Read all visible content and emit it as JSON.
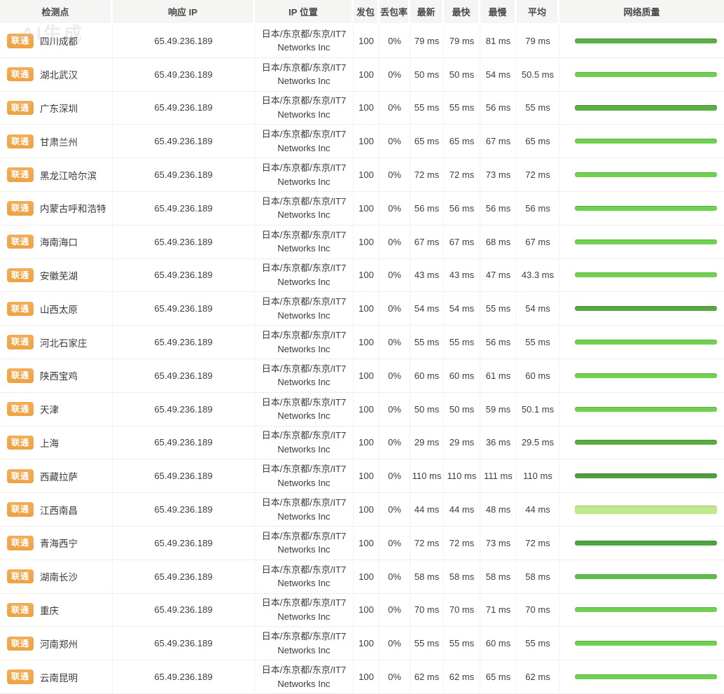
{
  "watermark": "AI生成",
  "columns": {
    "testpoint": "检测点",
    "response_ip": "响应 IP",
    "ip_location": "IP 位置",
    "packets": "发包",
    "loss": "丢包率",
    "latest": "最新",
    "fastest": "最快",
    "slowest": "最慢",
    "average": "平均",
    "quality": "网络质量"
  },
  "colors": {
    "carrier_badge": "#f0a64d",
    "bar_medium": "#6fd14f",
    "bar_medium_dark": "#58b044",
    "bar_dark": "#55a844",
    "bar_light": "#bfe98a",
    "header_bg": "#f5f5f4"
  },
  "table": {
    "rows": [
      {
        "carrier": "联通",
        "location": "四川成都",
        "ip": "65.49.236.189",
        "ip_location_line1": "日本/东京都/东京/IT7",
        "ip_location_line2": "Networks Inc",
        "packets": "100",
        "loss": "0%",
        "latest": "79 ms",
        "fastest": "79 ms",
        "slowest": "81 ms",
        "average": "79 ms",
        "bar": {
          "color": "#58b044",
          "height": 7,
          "textured": false
        }
      },
      {
        "carrier": "联通",
        "location": "湖北武汉",
        "ip": "65.49.236.189",
        "ip_location_line1": "日本/东京都/东京/IT7",
        "ip_location_line2": "Networks Inc",
        "packets": "100",
        "loss": "0%",
        "latest": "50 ms",
        "fastest": "50 ms",
        "slowest": "54 ms",
        "average": "50.5 ms",
        "bar": {
          "color": "#6fd14f",
          "height": 7,
          "textured": false
        }
      },
      {
        "carrier": "联通",
        "location": "广东深圳",
        "ip": "65.49.236.189",
        "ip_location_line1": "日本/东京都/东京/IT7",
        "ip_location_line2": "Networks Inc",
        "packets": "100",
        "loss": "0%",
        "latest": "55 ms",
        "fastest": "55 ms",
        "slowest": "56 ms",
        "average": "55 ms",
        "bar": {
          "color": "#58b044",
          "height": 8,
          "textured": true
        }
      },
      {
        "carrier": "联通",
        "location": "甘肃兰州",
        "ip": "65.49.236.189",
        "ip_location_line1": "日本/东京都/东京/IT7",
        "ip_location_line2": "Networks Inc",
        "packets": "100",
        "loss": "0%",
        "latest": "65 ms",
        "fastest": "65 ms",
        "slowest": "67 ms",
        "average": "65 ms",
        "bar": {
          "color": "#6fd14f",
          "height": 7,
          "textured": false
        }
      },
      {
        "carrier": "联通",
        "location": "黑龙江哈尔滨",
        "ip": "65.49.236.189",
        "ip_location_line1": "日本/东京都/东京/IT7",
        "ip_location_line2": "Networks Inc",
        "packets": "100",
        "loss": "0%",
        "latest": "72 ms",
        "fastest": "72 ms",
        "slowest": "73 ms",
        "average": "72 ms",
        "bar": {
          "color": "#6fd14f",
          "height": 7,
          "textured": false
        }
      },
      {
        "carrier": "联通",
        "location": "内蒙古呼和浩特",
        "ip": "65.49.236.189",
        "ip_location_line1": "日本/东京都/东京/IT7",
        "ip_location_line2": "Networks Inc",
        "packets": "100",
        "loss": "0%",
        "latest": "56 ms",
        "fastest": "56 ms",
        "slowest": "56 ms",
        "average": "56 ms",
        "bar": {
          "color": "#6fd14f",
          "height": 7,
          "textured": false
        }
      },
      {
        "carrier": "联通",
        "location": "海南海口",
        "ip": "65.49.236.189",
        "ip_location_line1": "日本/东京都/东京/IT7",
        "ip_location_line2": "Networks Inc",
        "packets": "100",
        "loss": "0%",
        "latest": "67 ms",
        "fastest": "67 ms",
        "slowest": "68 ms",
        "average": "67 ms",
        "bar": {
          "color": "#6fd14f",
          "height": 7,
          "textured": false
        }
      },
      {
        "carrier": "联通",
        "location": "安徽芜湖",
        "ip": "65.49.236.189",
        "ip_location_line1": "日本/东京都/东京/IT7",
        "ip_location_line2": "Networks Inc",
        "packets": "100",
        "loss": "0%",
        "latest": "43 ms",
        "fastest": "43 ms",
        "slowest": "47 ms",
        "average": "43.3 ms",
        "bar": {
          "color": "#6fd14f",
          "height": 7,
          "textured": false
        }
      },
      {
        "carrier": "联通",
        "location": "山西太原",
        "ip": "65.49.236.189",
        "ip_location_line1": "日本/东京都/东京/IT7",
        "ip_location_line2": "Networks Inc",
        "packets": "100",
        "loss": "0%",
        "latest": "54 ms",
        "fastest": "54 ms",
        "slowest": "55 ms",
        "average": "54 ms",
        "bar": {
          "color": "#55a844",
          "height": 7,
          "textured": false
        }
      },
      {
        "carrier": "联通",
        "location": "河北石家庄",
        "ip": "65.49.236.189",
        "ip_location_line1": "日本/东京都/东京/IT7",
        "ip_location_line2": "Networks Inc",
        "packets": "100",
        "loss": "0%",
        "latest": "55 ms",
        "fastest": "55 ms",
        "slowest": "56 ms",
        "average": "55 ms",
        "bar": {
          "color": "#6fd14f",
          "height": 7,
          "textured": false
        }
      },
      {
        "carrier": "联通",
        "location": "陕西宝鸡",
        "ip": "65.49.236.189",
        "ip_location_line1": "日本/东京都/东京/IT7",
        "ip_location_line2": "Networks Inc",
        "packets": "100",
        "loss": "0%",
        "latest": "60 ms",
        "fastest": "60 ms",
        "slowest": "61 ms",
        "average": "60 ms",
        "bar": {
          "color": "#6fd14f",
          "height": 7,
          "textured": false
        }
      },
      {
        "carrier": "联通",
        "location": "天津",
        "ip": "65.49.236.189",
        "ip_location_line1": "日本/东京都/东京/IT7",
        "ip_location_line2": "Networks Inc",
        "packets": "100",
        "loss": "0%",
        "latest": "50 ms",
        "fastest": "50 ms",
        "slowest": "59 ms",
        "average": "50.1 ms",
        "bar": {
          "color": "#6fd14f",
          "height": 7,
          "textured": false
        }
      },
      {
        "carrier": "联通",
        "location": "上海",
        "ip": "65.49.236.189",
        "ip_location_line1": "日本/东京都/东京/IT7",
        "ip_location_line2": "Networks Inc",
        "packets": "100",
        "loss": "0%",
        "latest": "29 ms",
        "fastest": "29 ms",
        "slowest": "36 ms",
        "average": "29.5 ms",
        "bar": {
          "color": "#58ad3f",
          "height": 7,
          "textured": false
        }
      },
      {
        "carrier": "联通",
        "location": "西藏拉萨",
        "ip": "65.49.236.189",
        "ip_location_line1": "日本/东京都/东京/IT7",
        "ip_location_line2": "Networks Inc",
        "packets": "100",
        "loss": "0%",
        "latest": "110 ms",
        "fastest": "110 ms",
        "slowest": "111 ms",
        "average": "110 ms",
        "bar": {
          "color": "#4f9e3e",
          "height": 7,
          "textured": true
        }
      },
      {
        "carrier": "联通",
        "location": "江西南昌",
        "ip": "65.49.236.189",
        "ip_location_line1": "日本/东京都/东京/IT7",
        "ip_location_line2": "Networks Inc",
        "packets": "100",
        "loss": "0%",
        "latest": "44 ms",
        "fastest": "44 ms",
        "slowest": "48 ms",
        "average": "44 ms",
        "bar": {
          "color": "#bfe98a",
          "height": 12,
          "textured": false
        }
      },
      {
        "carrier": "联通",
        "location": "青海西宁",
        "ip": "65.49.236.189",
        "ip_location_line1": "日本/东京都/东京/IT7",
        "ip_location_line2": "Networks Inc",
        "packets": "100",
        "loss": "0%",
        "latest": "72 ms",
        "fastest": "72 ms",
        "slowest": "73 ms",
        "average": "72 ms",
        "bar": {
          "color": "#4fa341",
          "height": 7,
          "textured": false
        }
      },
      {
        "carrier": "联通",
        "location": "湖南长沙",
        "ip": "65.49.236.189",
        "ip_location_line1": "日本/东京都/东京/IT7",
        "ip_location_line2": "Networks Inc",
        "packets": "100",
        "loss": "0%",
        "latest": "58 ms",
        "fastest": "58 ms",
        "slowest": "58 ms",
        "average": "58 ms",
        "bar": {
          "color": "#5fbf4a",
          "height": 7,
          "textured": false
        }
      },
      {
        "carrier": "联通",
        "location": "重庆",
        "ip": "65.49.236.189",
        "ip_location_line1": "日本/东京都/东京/IT7",
        "ip_location_line2": "Networks Inc",
        "packets": "100",
        "loss": "0%",
        "latest": "70 ms",
        "fastest": "70 ms",
        "slowest": "71 ms",
        "average": "70 ms",
        "bar": {
          "color": "#6fd14f",
          "height": 7,
          "textured": false
        }
      },
      {
        "carrier": "联通",
        "location": "河南郑州",
        "ip": "65.49.236.189",
        "ip_location_line1": "日本/东京都/东京/IT7",
        "ip_location_line2": "Networks Inc",
        "packets": "100",
        "loss": "0%",
        "latest": "55 ms",
        "fastest": "55 ms",
        "slowest": "60 ms",
        "average": "55 ms",
        "bar": {
          "color": "#6fd14f",
          "height": 7,
          "textured": false
        }
      },
      {
        "carrier": "联通",
        "location": "云南昆明",
        "ip": "65.49.236.189",
        "ip_location_line1": "日本/东京都/东京/IT7",
        "ip_location_line2": "Networks Inc",
        "packets": "100",
        "loss": "0%",
        "latest": "62 ms",
        "fastest": "62 ms",
        "slowest": "65 ms",
        "average": "62 ms",
        "bar": {
          "color": "#6fd14f",
          "height": 7,
          "textured": false
        }
      }
    ]
  }
}
